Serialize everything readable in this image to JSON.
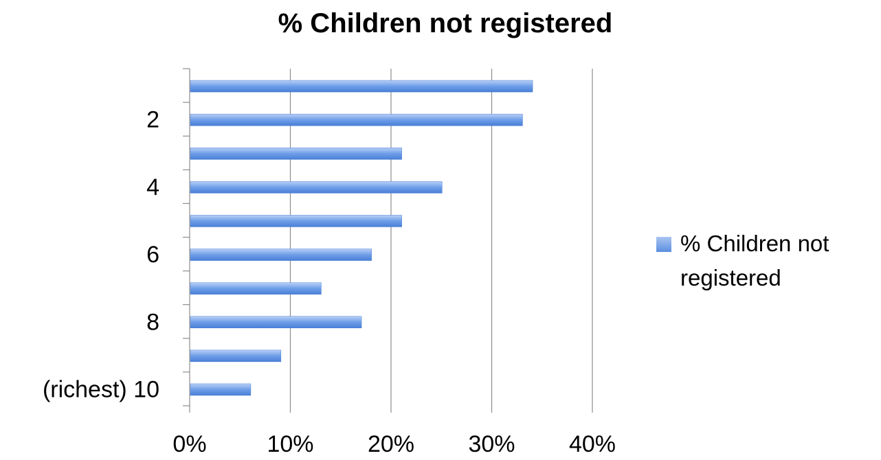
{
  "chart_data": {
    "type": "bar",
    "orientation": "horizontal",
    "title": "% Children not registered",
    "categories": [
      "(richest) 10",
      "",
      "8",
      "",
      "6",
      "",
      "4",
      "",
      "2",
      ""
    ],
    "series": [
      {
        "name": "% Children not registered",
        "values": [
          6,
          9,
          17,
          13,
          18,
          21,
          25,
          21,
          33,
          34
        ]
      }
    ],
    "xlim": [
      0,
      40
    ],
    "x_ticks": [
      "0%",
      "10%",
      "20%",
      "30%",
      "40%"
    ],
    "grid": true,
    "legend_position": "right",
    "bar_color": "#5b8fe0"
  },
  "legend": {
    "line1": "% Children not",
    "line2": "registered"
  }
}
